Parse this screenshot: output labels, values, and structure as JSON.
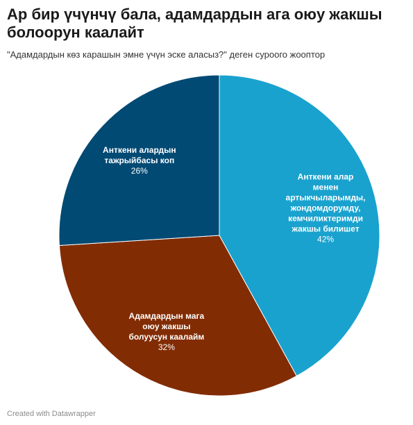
{
  "title": "Ар бир үчүнчү бала, адамдардын ага оюу жакшы болоорун каалайт",
  "subtitle": "\"Адамдардын көз карашын эмне үчүн эске аласыз?\" деген суроого жооптор",
  "footer": "Created with Datawrapper",
  "chart_data": {
    "type": "pie",
    "title": "Ар бир үчүнчү бала, адамдардын ага оюу жакшы болоорун каалайт",
    "subtitle": "\"Адамдардын көз карашын эмне үчүн эске аласыз?\" деген суроого жооптор",
    "unit": "%",
    "legend": "none",
    "slices": [
      {
        "label_lines": [
          "Анткени алар",
          "менен",
          "артыкчыларымды,",
          "жондомдорумду,",
          "кемчиликтеримди",
          "жакшы билишет"
        ],
        "value": 42,
        "value_label": "42%",
        "color": "#1aa2ce"
      },
      {
        "label_lines": [
          "Адамдардын мага",
          "оюу жакшы",
          "болуусун каалайм"
        ],
        "value": 32,
        "value_label": "32%",
        "color": "#822c03"
      },
      {
        "label_lines": [
          "Анткени алардын",
          "тажрыйбасы коп"
        ],
        "value": 26,
        "value_label": "26%",
        "color": "#014a74"
      }
    ]
  }
}
